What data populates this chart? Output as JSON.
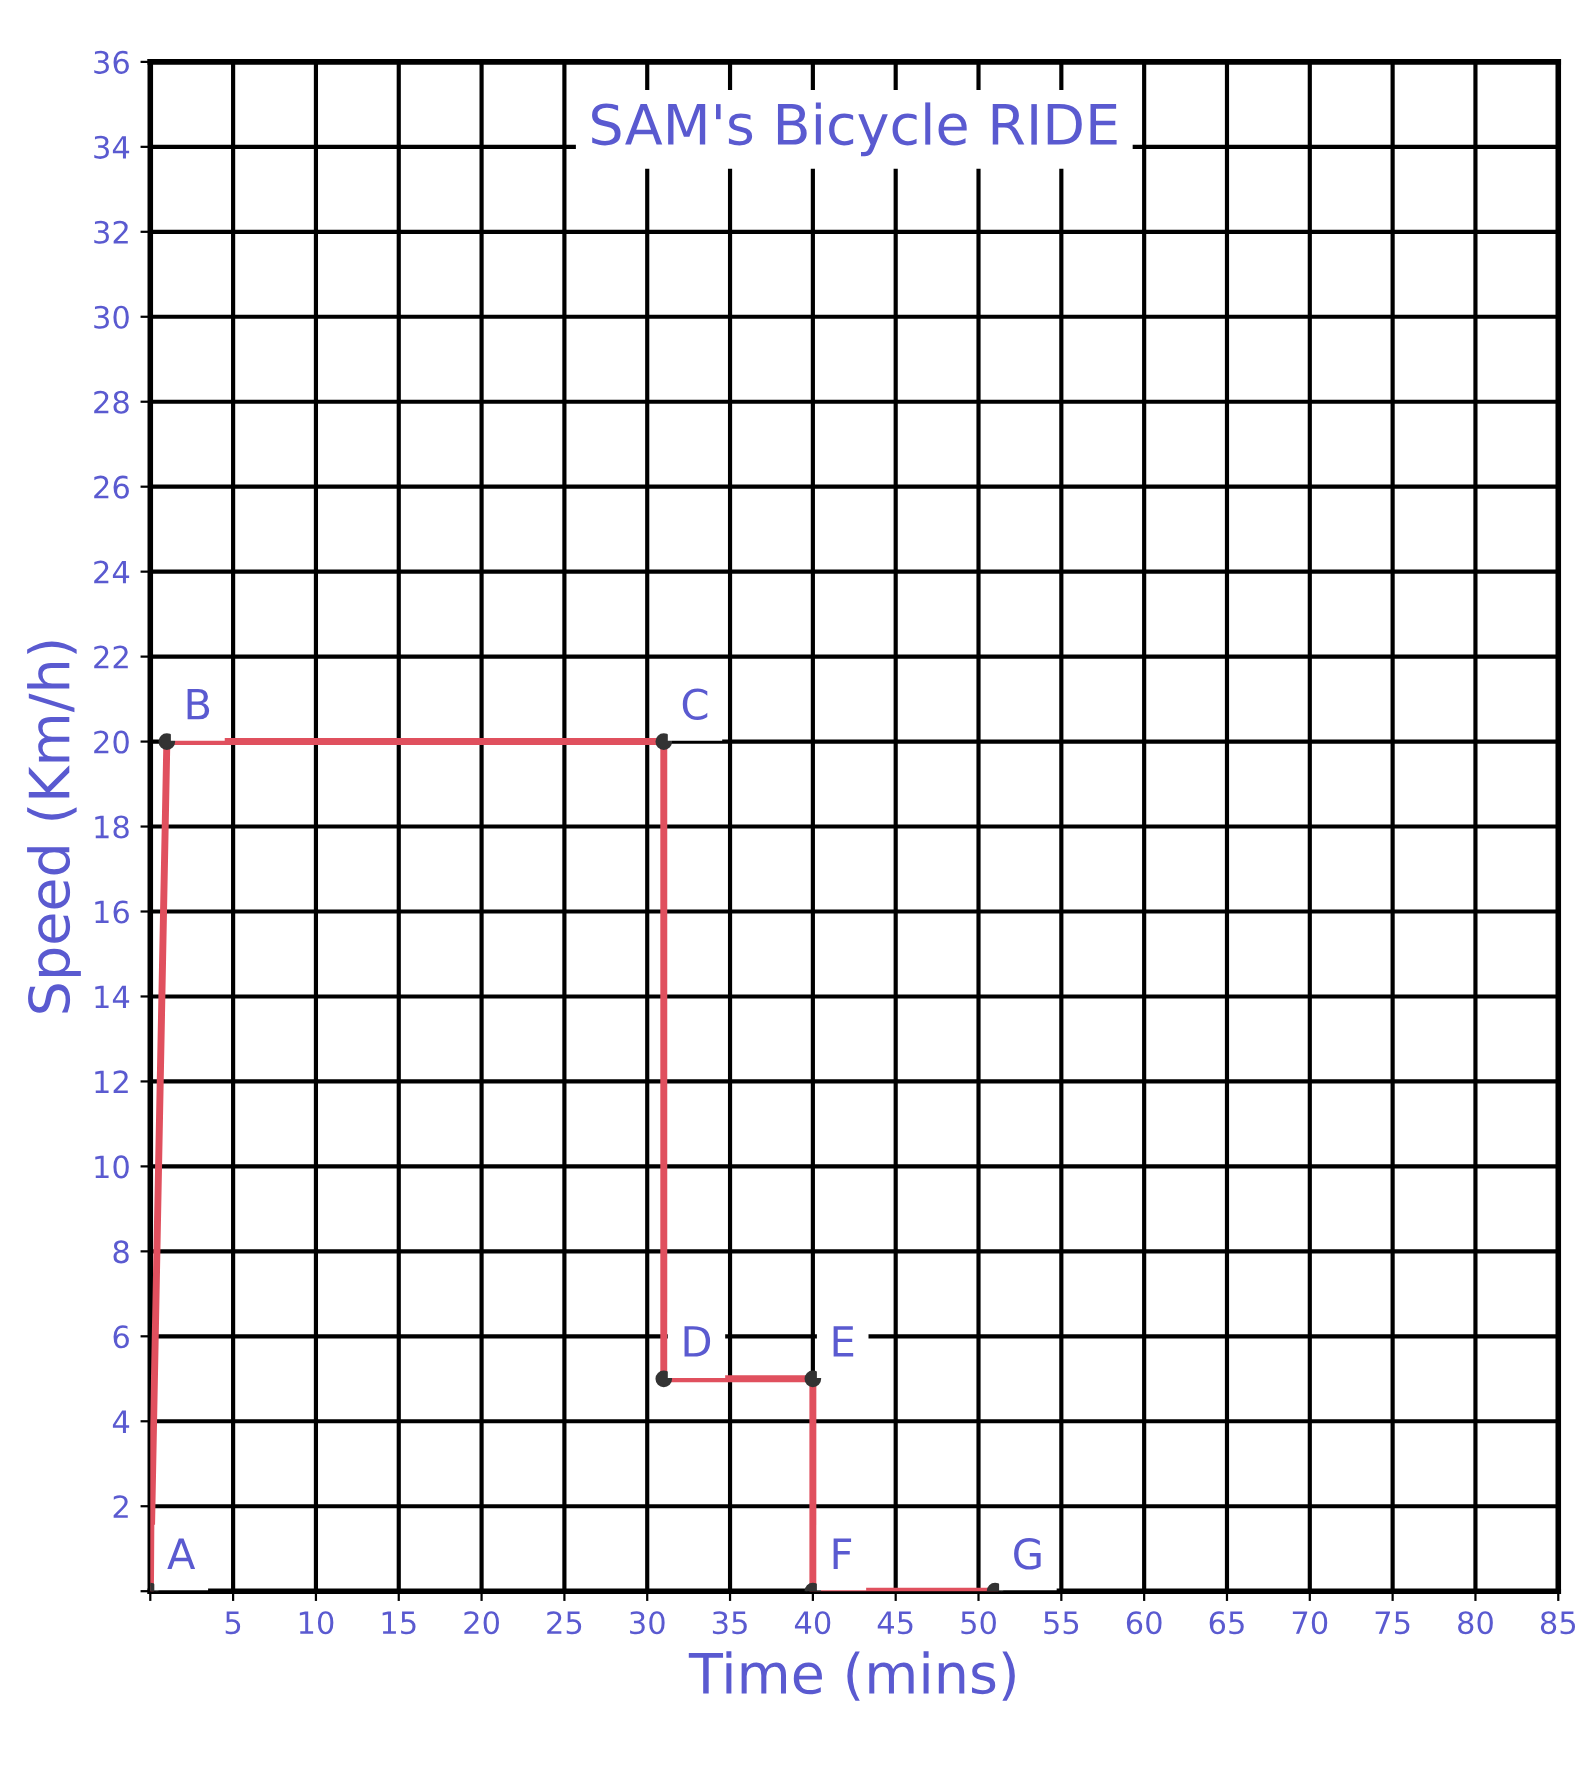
{
  "chart_data": {
    "type": "line",
    "title": "SAM's Bicycle RIDE",
    "xlabel": "Time (mins)",
    "ylabel": "Speed (Km/h)",
    "series": [
      {
        "color": "#e0505e",
        "x": [
          0,
          1,
          31,
          31,
          40,
          40,
          51
        ],
        "values": [
          0,
          20,
          20,
          5,
          5,
          0,
          0
        ]
      }
    ],
    "annotations": [
      {
        "text": "A",
        "x": 0,
        "y": 0
      },
      {
        "text": "B",
        "x": 1,
        "y": 20
      },
      {
        "text": "C",
        "x": 31,
        "y": 20
      },
      {
        "text": "D",
        "x": 31,
        "y": 5
      },
      {
        "text": "E",
        "x": 40,
        "y": 5
      },
      {
        "text": "F",
        "x": 40,
        "y": 0
      },
      {
        "text": "G",
        "x": 51,
        "y": 0
      }
    ],
    "xlim": [
      0,
      85
    ],
    "ylim": [
      0,
      36
    ],
    "xticks": [
      {
        "value": 0,
        "label": null
      },
      5,
      10,
      15,
      20,
      25,
      30,
      35,
      40,
      45,
      50,
      55,
      60,
      65,
      70,
      75,
      80,
      85
    ],
    "yticks": [
      {
        "value": 0,
        "label": null
      },
      2,
      4,
      6,
      8,
      10,
      12,
      14,
      16,
      18,
      20,
      22,
      24,
      26,
      28,
      30,
      32,
      34,
      36
    ],
    "grid": true,
    "marker": "circle",
    "line_style": "solid"
  }
}
